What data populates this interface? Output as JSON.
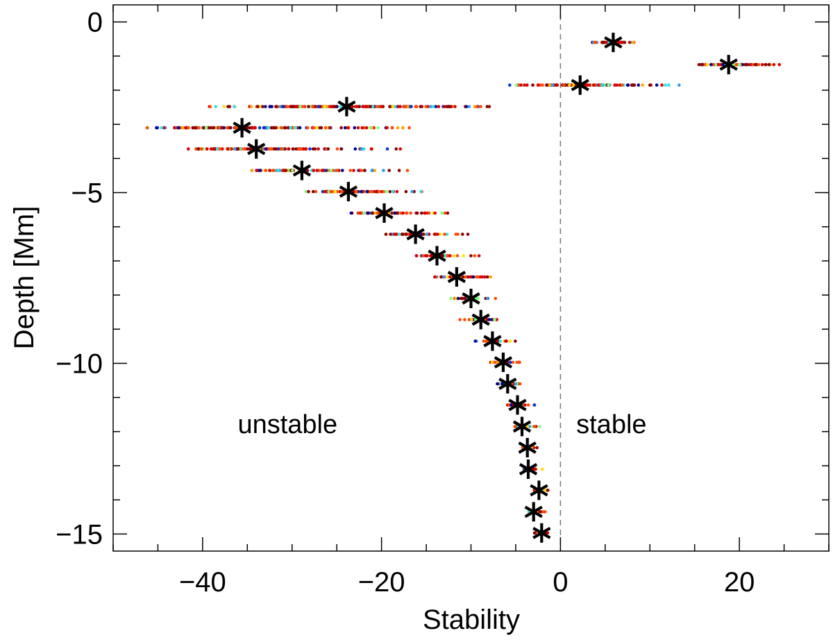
{
  "chart_data": {
    "type": "scatter",
    "xlabel": "Stability",
    "ylabel": "Depth [Mm]",
    "xlim": [
      -50,
      30
    ],
    "ylim": [
      -15.5,
      0.5
    ],
    "x_ticks": [
      -40,
      -20,
      0,
      20
    ],
    "x_tick_labels": [
      "−40",
      "−20",
      "0",
      "20"
    ],
    "y_ticks": [
      0,
      -5,
      -10,
      -15
    ],
    "y_tick_labels": [
      "0",
      "−5",
      "−10",
      "−15"
    ],
    "x_minor_step": 5,
    "y_minor_step": 1,
    "reference_line": {
      "x": 0,
      "style": "dashed",
      "color": "#777777"
    },
    "annotations": [
      {
        "text": "unstable",
        "x": -30.5,
        "y": -11.8
      },
      {
        "text": "stable",
        "x": 5.7,
        "y": -11.8
      }
    ],
    "marker_color": "#000000",
    "scatter_colors": [
      "#00008f",
      "#0038d8",
      "#2c9cf0",
      "#30e0e8",
      "#7cff80",
      "#ffe000",
      "#ffaa00",
      "#ff4a00",
      "#d80000",
      "#8a0000"
    ],
    "depth_levels": [
      {
        "depth": -0.6,
        "median": 5.9,
        "min": 2.9,
        "max": 9.0
      },
      {
        "depth": -1.25,
        "median": 18.8,
        "min": 14.9,
        "max": 25.2
      },
      {
        "depth": -1.85,
        "median": 2.2,
        "min": -5.9,
        "max": 13.3
      },
      {
        "depth": -2.48,
        "median": -23.9,
        "min": -40.0,
        "max": -7.6
      },
      {
        "depth": -3.1,
        "median": -35.6,
        "min": -46.3,
        "max": -16.8
      },
      {
        "depth": -3.72,
        "median": -34.0,
        "min": -41.6,
        "max": -17.8
      },
      {
        "depth": -4.35,
        "median": -28.9,
        "min": -34.5,
        "max": -17.1
      },
      {
        "depth": -4.97,
        "median": -23.7,
        "min": -28.5,
        "max": -15.0
      },
      {
        "depth": -5.6,
        "median": -19.7,
        "min": -23.7,
        "max": -12.2
      },
      {
        "depth": -6.22,
        "median": -16.2,
        "min": -20.0,
        "max": -10.2
      },
      {
        "depth": -6.85,
        "median": -13.8,
        "min": -16.6,
        "max": -8.6
      },
      {
        "depth": -7.47,
        "median": -11.6,
        "min": -14.4,
        "max": -7.6
      },
      {
        "depth": -8.1,
        "median": -10.0,
        "min": -12.4,
        "max": -6.9
      },
      {
        "depth": -8.72,
        "median": -8.9,
        "min": -11.4,
        "max": -5.8
      },
      {
        "depth": -9.35,
        "median": -7.6,
        "min": -9.6,
        "max": -4.9
      },
      {
        "depth": -9.97,
        "median": -6.4,
        "min": -7.8,
        "max": -3.9
      },
      {
        "depth": -10.6,
        "median": -5.9,
        "min": -7.2,
        "max": -3.6
      },
      {
        "depth": -11.22,
        "median": -4.8,
        "min": -5.9,
        "max": -2.8
      },
      {
        "depth": -11.85,
        "median": -4.3,
        "min": -5.1,
        "max": -2.3
      },
      {
        "depth": -12.47,
        "median": -3.7,
        "min": -4.7,
        "max": -2.0
      },
      {
        "depth": -13.1,
        "median": -3.6,
        "min": -4.4,
        "max": -2.0
      },
      {
        "depth": -13.72,
        "median": -2.4,
        "min": -3.8,
        "max": -1.3
      },
      {
        "depth": -14.35,
        "median": -3.0,
        "min": -3.6,
        "max": -1.7
      },
      {
        "depth": -14.97,
        "median": -2.1,
        "min": -2.9,
        "max": -1.2
      }
    ]
  }
}
